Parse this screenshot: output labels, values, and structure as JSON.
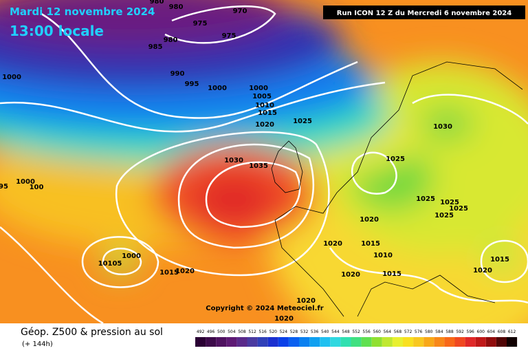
{
  "header": {
    "date": "Mardi 12 novembre 2024",
    "time": "13:00 locale",
    "run": "Run ICON 12 Z du Mercredi 6 novembre 2024"
  },
  "copyright": "Copyright © 2024 Meteociel.fr",
  "footer": {
    "title": "Géop. Z500 & pression au sol",
    "lead": "(+ 144h)"
  },
  "isobar_labels": [
    "980",
    "980",
    "970",
    "975",
    "975",
    "985",
    "980",
    "990",
    "995",
    "1000",
    "1000",
    "1000",
    "1005",
    "1010",
    "1015",
    "1020",
    "1025",
    "1030",
    "1030",
    "1035",
    "1025",
    "1000",
    "100",
    "95",
    "1025",
    "1025",
    "1025",
    "1025",
    "1020",
    "1020",
    "1015",
    "1010",
    "1000",
    "10105",
    "1015",
    "1020",
    "1020",
    "1015",
    "1015",
    "1020",
    "1020",
    "1020"
  ],
  "scale": [
    {
      "label": 492,
      "color": "#2a0033"
    },
    {
      "label": 496,
      "color": "#3d0a4a"
    },
    {
      "label": 500,
      "color": "#4f1260"
    },
    {
      "label": 504,
      "color": "#5e1a74"
    },
    {
      "label": 508,
      "color": "#5a2a8a"
    },
    {
      "label": 512,
      "color": "#4a3aa0"
    },
    {
      "label": 516,
      "color": "#3040b8"
    },
    {
      "label": 520,
      "color": "#1a30d0"
    },
    {
      "label": 524,
      "color": "#0a40e8"
    },
    {
      "label": 528,
      "color": "#0a60f0"
    },
    {
      "label": 532,
      "color": "#0a80f0"
    },
    {
      "label": 536,
      "color": "#10a0f0"
    },
    {
      "label": 540,
      "color": "#20c0f0"
    },
    {
      "label": 544,
      "color": "#30d8e0"
    },
    {
      "label": 548,
      "color": "#30e0b0"
    },
    {
      "label": 552,
      "color": "#40e080"
    },
    {
      "label": 556,
      "color": "#60e050"
    },
    {
      "label": 560,
      "color": "#90e030"
    },
    {
      "label": 564,
      "color": "#c0e830"
    },
    {
      "label": 568,
      "color": "#e8f030"
    },
    {
      "label": 572,
      "color": "#f8e020"
    },
    {
      "label": 576,
      "color": "#f8c820"
    },
    {
      "label": 580,
      "color": "#f8a818"
    },
    {
      "label": 584,
      "color": "#f88818"
    },
    {
      "label": 588,
      "color": "#f86818"
    },
    {
      "label": 592,
      "color": "#f04820"
    },
    {
      "label": 596,
      "color": "#e02828"
    },
    {
      "label": 600,
      "color": "#c01818"
    },
    {
      "label": 604,
      "color": "#900c0c"
    },
    {
      "label": 608,
      "color": "#500505"
    },
    {
      "label": 612,
      "color": "#100000"
    }
  ]
}
